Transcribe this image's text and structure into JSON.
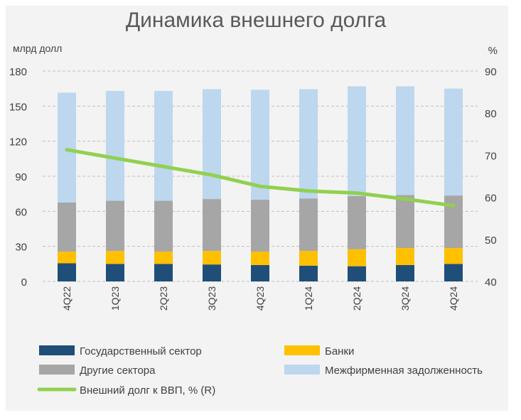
{
  "chart_data": {
    "type": "bar",
    "title": "Динамика внешнего долга",
    "ylabel": "млрд долл",
    "y2label": "%",
    "ylim": [
      0,
      180
    ],
    "y2lim": [
      40,
      90
    ],
    "yticks": [
      0,
      30,
      60,
      90,
      120,
      150,
      180
    ],
    "y2ticks": [
      40,
      50,
      60,
      70,
      80,
      90
    ],
    "stacked": true,
    "grid": true,
    "legend_position": "bottom",
    "categories": [
      "4Q22",
      "1Q23",
      "2Q23",
      "3Q23",
      "4Q23",
      "1Q24",
      "2Q24",
      "3Q24",
      "4Q24"
    ],
    "series": [
      {
        "name": "Государственный сектор",
        "type": "bar",
        "axis": "left",
        "color": "#1f4e79",
        "values": [
          15.5,
          15,
          15,
          14.5,
          14,
          13.5,
          13,
          14,
          15
        ]
      },
      {
        "name": "Банки",
        "type": "bar",
        "axis": "left",
        "color": "#ffc000",
        "values": [
          10,
          11,
          10.5,
          11.5,
          11.5,
          12.5,
          14.5,
          14.5,
          13.5
        ]
      },
      {
        "name": "Другие сектора",
        "type": "bar",
        "axis": "left",
        "color": "#a6a6a6",
        "values": [
          42,
          43,
          43.5,
          44.5,
          44.5,
          45,
          45.5,
          45.5,
          45
        ]
      },
      {
        "name": "Межфирменная задолженность",
        "type": "bar",
        "axis": "left",
        "color": "#bdd7ee",
        "values": [
          94,
          94,
          94,
          94,
          94,
          93.5,
          94,
          93,
          91.5
        ]
      },
      {
        "name": "Внешний долг к ВВП, % (R)",
        "type": "line",
        "axis": "right",
        "color": "#92d050",
        "values": [
          71.3,
          69.3,
          67.3,
          65.3,
          62.6,
          61.5,
          61,
          59.6,
          58
        ]
      }
    ]
  }
}
